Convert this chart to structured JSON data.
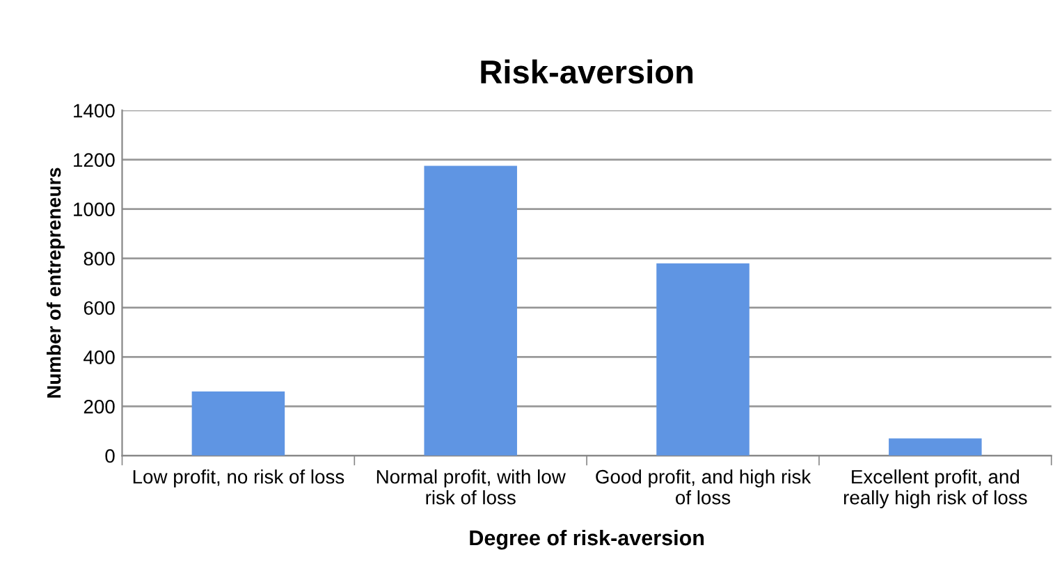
{
  "chart_data": {
    "type": "bar",
    "title": "Risk-aversion",
    "xlabel": "Degree of risk-aversion",
    "ylabel": "Number of entrepreneurs",
    "categories": [
      "Low profit, no risk of loss",
      "Normal profit, with low risk of loss",
      "Good profit, and high risk of loss",
      "Excellent profit, and really high risk of loss"
    ],
    "values": [
      260,
      1175,
      780,
      70
    ],
    "color": "#5f95e3",
    "ylim": [
      0,
      1400
    ],
    "yticks": [
      0,
      200,
      400,
      600,
      800,
      1000,
      1200,
      1400
    ],
    "grid": "y",
    "legend": false
  }
}
